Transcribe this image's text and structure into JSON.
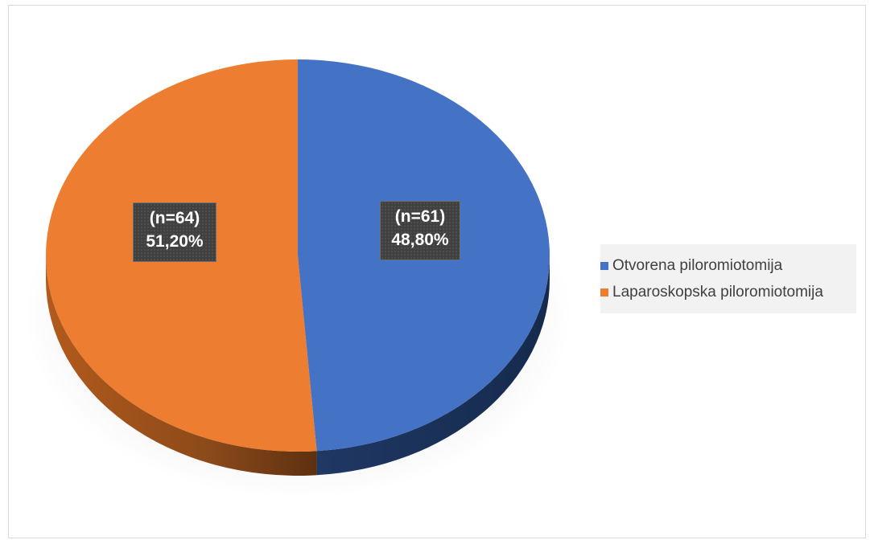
{
  "chart_data": {
    "type": "pie",
    "title": "",
    "style": "3d",
    "legend_position": "right",
    "slices": [
      {
        "name": "Otvorena piloromiotomija",
        "count_label": "(n=61)",
        "percent_label": "48,80%",
        "value": 61,
        "percent": 48.8,
        "color": "#4472c4",
        "side_color": "#1f3864"
      },
      {
        "name": "Laparoskopska piloromiotomija",
        "count_label": "(n=64)",
        "percent_label": "51,20%",
        "value": 64,
        "percent": 51.2,
        "color": "#ed7d31",
        "side_color": "#8c4a1a"
      }
    ]
  }
}
